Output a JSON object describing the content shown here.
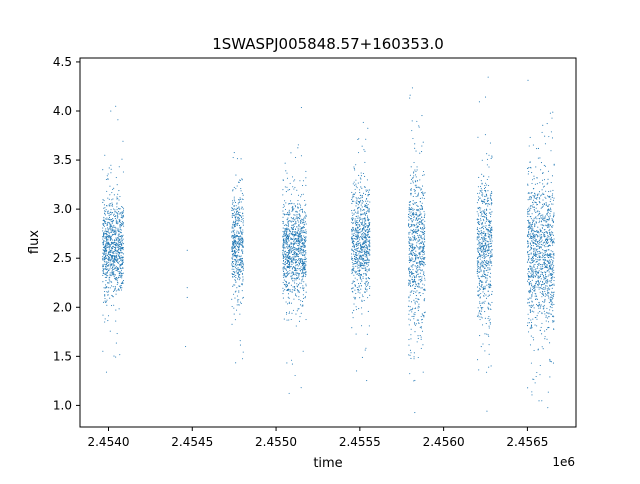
{
  "chart_data": {
    "type": "scatter",
    "title": "1SWASPJ005848.57+160353.0",
    "xlabel": "time",
    "ylabel": "flux",
    "x_offset_label": "1e6",
    "xlim": [
      2453830,
      2456790
    ],
    "ylim": [
      0.78,
      4.54
    ],
    "x_ticks": [
      2.454,
      2.4545,
      2.455,
      2.4555,
      2.456,
      2.4565
    ],
    "x_tick_labels": [
      "2.4540",
      "2.4545",
      "2.4550",
      "2.4555",
      "2.4560",
      "2.4565"
    ],
    "y_ticks": [
      1.0,
      1.5,
      2.0,
      2.5,
      3.0,
      3.5,
      4.0,
      4.5
    ],
    "y_tick_labels": [
      "1.0",
      "1.5",
      "2.0",
      "2.5",
      "3.0",
      "3.5",
      "4.0",
      "4.5"
    ],
    "grid": false,
    "legend": "none",
    "marker_color": "#1f77b4",
    "series": [
      {
        "clusters": [
          {
            "x_range": [
              2453965,
              2454090
            ],
            "center": 2.6,
            "min": 1.15,
            "max": 4.2,
            "core_sd": 0.25
          },
          {
            "x_range": [
              2454735,
              2454805
            ],
            "center": 2.65,
            "min": 1.0,
            "max": 4.15,
            "core_sd": 0.27
          },
          {
            "x_range": [
              2455040,
              2455180
            ],
            "center": 2.6,
            "min": 1.1,
            "max": 4.15,
            "core_sd": 0.25
          },
          {
            "x_range": [
              2455450,
              2455560
            ],
            "center": 2.65,
            "min": 1.0,
            "max": 4.33,
            "core_sd": 0.27
          },
          {
            "x_range": [
              2455790,
              2455890
            ],
            "center": 2.6,
            "min": 0.92,
            "max": 4.37,
            "core_sd": 0.4
          },
          {
            "x_range": [
              2456200,
              2456290
            ],
            "center": 2.6,
            "min": 0.92,
            "max": 4.37,
            "core_sd": 0.35
          },
          {
            "x_range": [
              2456500,
              2456660
            ],
            "center": 2.55,
            "min": 0.93,
            "max": 4.37,
            "core_sd": 0.4
          }
        ],
        "isolated_points": [
          {
            "x": 2454470,
            "y": 2.58
          },
          {
            "x": 2454470,
            "y": 2.2
          },
          {
            "x": 2454470,
            "y": 2.1
          },
          {
            "x": 2454460,
            "y": 1.6
          }
        ]
      }
    ]
  }
}
